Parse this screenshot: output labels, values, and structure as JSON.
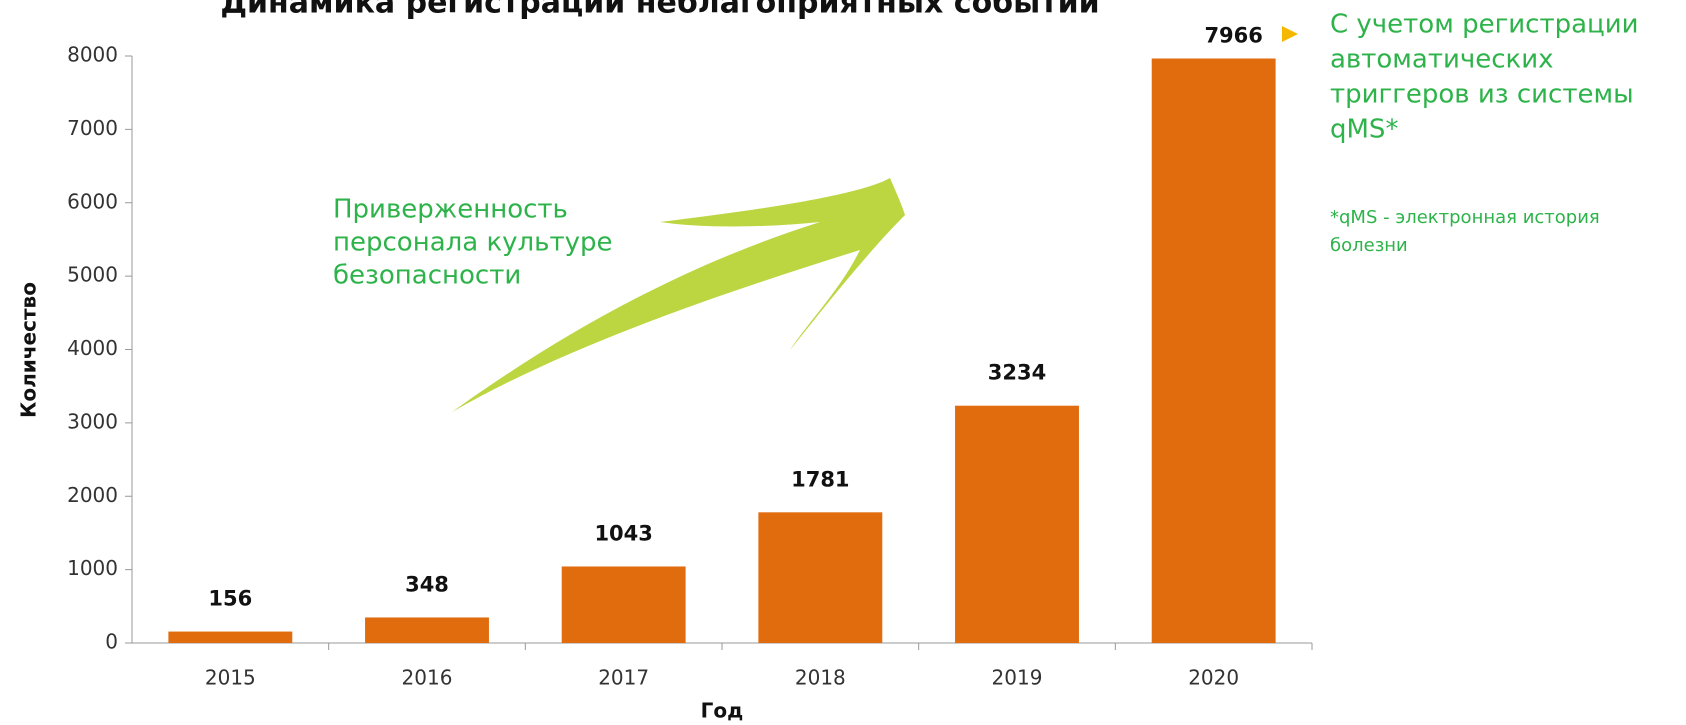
{
  "chart_data": {
    "type": "bar",
    "title": "Динамика регистрации неблагоприятных событий",
    "x_label": "Год",
    "y_label": "Количество",
    "categories": [
      "2015",
      "2016",
      "2017",
      "2018",
      "2019",
      "2020"
    ],
    "values": [
      156,
      348,
      1043,
      1781,
      3234,
      7966
    ],
    "color": "#e06c0e",
    "ylim": [
      0,
      8000
    ],
    "yticks": [
      0,
      1000,
      2000,
      3000,
      4000,
      5000,
      6000,
      7000,
      8000
    ],
    "annotations": {
      "trend": [
        "Приверженность",
        "персонала культуре",
        "безопасности"
      ],
      "note": [
        "С учетом регистрации",
        "автоматических",
        "триггеров из системы",
        "qMS*"
      ],
      "footnote": [
        "*qMS - электронная история",
        "болезни"
      ]
    }
  }
}
